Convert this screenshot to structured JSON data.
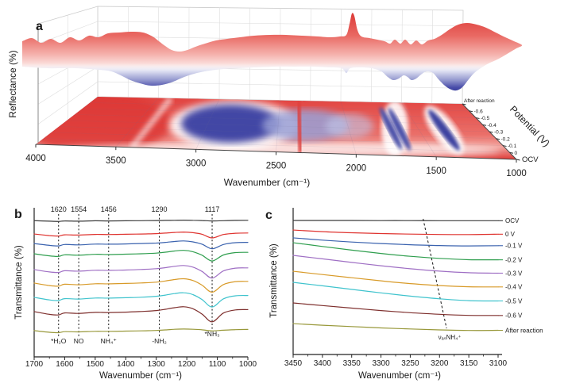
{
  "figure": {
    "panel_letters": {
      "a": "a",
      "b": "b",
      "c": "c"
    }
  },
  "chart_data": [
    {
      "panel": "a",
      "type": "surface",
      "xlabel": "Wavenumber (cm⁻¹)",
      "zlabel": "Reflectance (%)",
      "depth_label": "Potential (V)",
      "x_range": [
        4000,
        1000
      ],
      "x_ticks": [
        4000,
        3500,
        3000,
        2500,
        2000,
        1500,
        1000
      ],
      "depth_ticks": [
        "After reaction",
        "-0.6",
        "-0.5",
        "-0.4",
        "-0.3",
        "-0.2",
        "-0.1",
        "0",
        "OCV"
      ],
      "colormap": {
        "high_reflectance": "#e2403d",
        "mid": "#ffffff",
        "low_reflectance": "#3e43a0"
      },
      "absorption_features_cm1": [
        3400,
        3000,
        2350,
        1700,
        1640,
        1320
      ],
      "grid": true
    },
    {
      "panel": "b",
      "type": "line",
      "xlabel": "Wavenumber (cm⁻¹)",
      "ylabel": "Transmittance (%)",
      "x_range": [
        1700,
        1000
      ],
      "x_ticks": [
        1700,
        1600,
        1500,
        1400,
        1300,
        1200,
        1100,
        1000
      ],
      "y_axis_note": "no numeric y ticks; offset-stacked spectra, y given as % of plot height from top",
      "peak_annotations": [
        {
          "wavenumber": 1620,
          "label_top": "1620",
          "label_bottom": "*H₂O"
        },
        {
          "wavenumber": 1554,
          "label_top": "1554",
          "label_bottom": "NO"
        },
        {
          "wavenumber": 1456,
          "label_top": "1456",
          "label_bottom": "NH₄⁺"
        },
        {
          "wavenumber": 1290,
          "label_top": "1290",
          "label_bottom": "-NH₂"
        },
        {
          "wavenumber": 1117,
          "label_top": "1117",
          "label_bottom": "*NH₃"
        }
      ],
      "x_samples": [
        1700,
        1650,
        1620,
        1600,
        1554,
        1500,
        1456,
        1400,
        1350,
        1300,
        1270,
        1240,
        1210,
        1180,
        1150,
        1117,
        1080,
        1040,
        1000
      ],
      "series": [
        {
          "name": "OCV",
          "color": "#3a3a3a",
          "y_plot_pct": [
            5,
            5.4,
            5.6,
            5.2,
            5.4,
            5.1,
            5.2,
            5.1,
            5,
            4.9,
            4.8,
            4.7,
            4.6,
            4.7,
            4.9,
            5.2,
            5,
            4.8,
            4.7
          ]
        },
        {
          "name": "0 V",
          "color": "#df332f",
          "y_plot_pct": [
            15.2,
            16.4,
            16.7,
            15.8,
            16,
            15.5,
            15.6,
            15.4,
            15.2,
            14.9,
            14.5,
            14,
            13.7,
            14.2,
            15.4,
            18.2,
            15.6,
            14.6,
            14.4
          ]
        },
        {
          "name": "-0.1 V",
          "color": "#3a62ae",
          "y_plot_pct": [
            22.5,
            23.9,
            24.3,
            23.2,
            23.5,
            22.9,
            23,
            22.8,
            22.5,
            22.1,
            21.6,
            20.9,
            20.5,
            21.2,
            23,
            26.5,
            23.2,
            21.8,
            21.6
          ]
        },
        {
          "name": "-0.2 V",
          "color": "#2f9e4e",
          "y_plot_pct": [
            30.3,
            31.9,
            32.3,
            31.1,
            31.4,
            30.7,
            30.9,
            30.6,
            30.3,
            29.8,
            29.1,
            28.2,
            27.7,
            28.7,
            31.4,
            35.8,
            31.2,
            29.4,
            29.2
          ]
        },
        {
          "name": "-0.3 V",
          "color": "#9f6fc4",
          "y_plot_pct": [
            42.4,
            44.2,
            44.6,
            43.3,
            43.6,
            42.9,
            43,
            42.7,
            42.3,
            41.7,
            40.9,
            39.9,
            39.3,
            40.5,
            43.8,
            48.9,
            43.4,
            41.3,
            41.1
          ]
        },
        {
          "name": "-0.4 V",
          "color": "#d89a28",
          "y_plot_pct": [
            52.7,
            54.6,
            55,
            53.6,
            54,
            53.2,
            53.3,
            53,
            52.6,
            52,
            51.1,
            50,
            49.4,
            50.7,
            54.3,
            59.7,
            53.8,
            51.6,
            51.4
          ]
        },
        {
          "name": "-0.5 V",
          "color": "#3fc3cd",
          "y_plot_pct": [
            63.6,
            65.6,
            66,
            64.6,
            64.9,
            64.1,
            64.2,
            63.9,
            63.5,
            62.8,
            61.9,
            60.7,
            60.1,
            61.5,
            65.3,
            71,
            64.7,
            62.4,
            62.2
          ]
        },
        {
          "name": "-0.6 V",
          "color": "#7e2f2d",
          "y_plot_pct": [
            74.5,
            76.6,
            77,
            75.5,
            75.9,
            75.1,
            75.2,
            74.9,
            74.4,
            73.7,
            72.7,
            71.5,
            70.8,
            72.3,
            76.4,
            82.3,
            75.6,
            73.2,
            73
          ]
        },
        {
          "name": "After reaction",
          "color": "#98983a",
          "y_plot_pct": [
            89,
            90.3,
            90.6,
            89.8,
            90,
            89.6,
            89.6,
            89.4,
            89.2,
            88.9,
            88.5,
            88,
            87.8,
            88,
            88.4,
            89.2,
            88.7,
            88.3,
            88.1
          ]
        }
      ]
    },
    {
      "panel": "c",
      "type": "line",
      "xlabel": "Wavenumber (cm⁻¹)",
      "ylabel": "Transmittance (%)",
      "x_range": [
        3450,
        3100
      ],
      "x_ticks": [
        3450,
        3400,
        3350,
        3300,
        3250,
        3200,
        3150,
        3100
      ],
      "y_axis_note": "no numeric y ticks; offset-stacked spectra, y given as % of plot height from top",
      "band_annotation": {
        "label": "νₐₛNH₄⁺",
        "x_top": 3228,
        "x_bottom": 3188
      },
      "x_samples": [
        3450,
        3400,
        3350,
        3300,
        3250,
        3200,
        3150,
        3100
      ],
      "series": [
        {
          "name": "OCV",
          "color": "#3a3a3a",
          "y_plot_pct": [
            4.7,
            4.7,
            4.7,
            4.8,
            4.8,
            4.9,
            4.9,
            4.9
          ]
        },
        {
          "name": "0 V",
          "color": "#df332f",
          "y_plot_pct": [
            11.8,
            13,
            13.8,
            14.4,
            14.8,
            15.1,
            15.2,
            14.9
          ]
        },
        {
          "name": "-0.1 V",
          "color": "#3a62ae",
          "y_plot_pct": [
            17.6,
            19.3,
            20.7,
            21.8,
            22.7,
            23.3,
            23.6,
            23.4
          ]
        },
        {
          "name": "-0.2 V",
          "color": "#2f9e4e",
          "y_plot_pct": [
            21.2,
            24,
            26.7,
            29.2,
            31.3,
            32.8,
            33.8,
            33.9
          ]
        },
        {
          "name": "-0.3 V",
          "color": "#9f6fc4",
          "y_plot_pct": [
            30.6,
            33.2,
            35.8,
            38.3,
            40.5,
            42.3,
            43.5,
            43.8
          ]
        },
        {
          "name": "-0.4 V",
          "color": "#d89a28",
          "y_plot_pct": [
            42.4,
            44.8,
            47.2,
            49.5,
            51.5,
            53,
            53.9,
            54
          ]
        },
        {
          "name": "-0.5 V",
          "color": "#3fc3cd",
          "y_plot_pct": [
            50.6,
            53.2,
            55.8,
            58.4,
            60.8,
            62.8,
            64.2,
            64.4
          ]
        },
        {
          "name": "-0.6 V",
          "color": "#7e2f2d",
          "y_plot_pct": [
            65.9,
            67.8,
            69.7,
            71.5,
            73.1,
            74.3,
            75.1,
            75.2
          ]
        },
        {
          "name": "After reaction",
          "color": "#98983a",
          "y_plot_pct": [
            81.2,
            82.4,
            83.4,
            84.4,
            85.2,
            85.9,
            86.3,
            86.2
          ]
        }
      ]
    }
  ]
}
